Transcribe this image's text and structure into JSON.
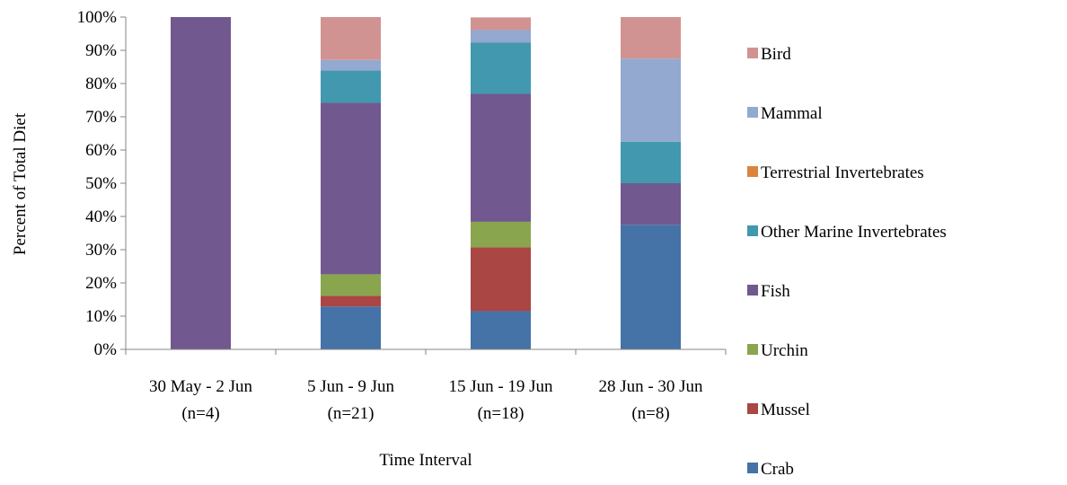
{
  "chart_data": {
    "type": "bar",
    "stacked": true,
    "ylabel": "Percent of Total Diet",
    "xlabel": "Time Interval",
    "ylim": [
      0,
      100
    ],
    "yticks": [
      "0%",
      "10%",
      "20%",
      "30%",
      "40%",
      "50%",
      "60%",
      "70%",
      "80%",
      "90%",
      "100%"
    ],
    "categories": [
      {
        "line1": "30 May - 2 Jun",
        "line2": "(n=4)"
      },
      {
        "line1": "5 Jun - 9 Jun",
        "line2": "(n=21)"
      },
      {
        "line1": "15 Jun - 19 Jun",
        "line2": "(n=18)"
      },
      {
        "line1": "28 Jun - 30 Jun",
        "line2": "(n=8)"
      }
    ],
    "series": [
      {
        "name": "Crab",
        "color": "#4572A7",
        "values": [
          0,
          12.9,
          11.5,
          37.5
        ]
      },
      {
        "name": "Mussel",
        "color": "#AA4643",
        "values": [
          0,
          3.2,
          19.2,
          0
        ]
      },
      {
        "name": "Urchin",
        "color": "#89A54E",
        "values": [
          0,
          6.5,
          7.7,
          0
        ]
      },
      {
        "name": "Fish",
        "color": "#71588F",
        "values": [
          100,
          51.6,
          38.5,
          12.5
        ]
      },
      {
        "name": "Other Marine Invertebrates",
        "color": "#4198AF",
        "values": [
          0,
          9.7,
          15.4,
          12.5
        ]
      },
      {
        "name": "Terrestrial Invertebrates",
        "color": "#DB843D",
        "values": [
          0,
          0,
          0,
          0
        ]
      },
      {
        "name": "Mammal",
        "color": "#93A9CF",
        "values": [
          0,
          3.2,
          3.8,
          25
        ]
      },
      {
        "name": "Bird",
        "color": "#D19392",
        "values": [
          0,
          12.9,
          3.8,
          12.5
        ]
      }
    ],
    "legend_position": "right",
    "legend_order": [
      "Bird",
      "Mammal",
      "Terrestrial Invertebrates",
      "Other Marine Invertebrates",
      "Fish",
      "Urchin",
      "Mussel",
      "Crab"
    ],
    "grid": false
  }
}
